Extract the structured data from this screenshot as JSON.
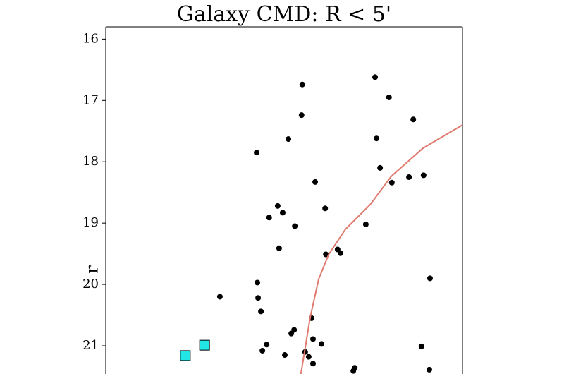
{
  "chart_data": {
    "type": "scatter",
    "title": "Galaxy CMD: R < 5'",
    "ylabel": "r",
    "xlim": [
      0,
      1
    ],
    "ylim": [
      21.46,
      15.8
    ],
    "yticks": [
      16,
      17,
      18,
      19,
      20,
      21
    ],
    "grid": false,
    "series": [
      {
        "marker": "circle",
        "color": "#000000",
        "x": [
          0.755,
          0.551,
          0.794,
          0.549,
          0.862,
          0.512,
          0.759,
          0.423,
          0.769,
          0.891,
          0.85,
          0.802,
          0.587,
          0.615,
          0.482,
          0.496,
          0.458,
          0.53,
          0.729,
          0.486,
          0.617,
          0.65,
          0.658,
          0.909,
          0.425,
          0.32,
          0.427,
          0.435,
          0.577,
          0.451,
          0.528,
          0.52,
          0.581,
          0.605,
          0.439,
          0.559,
          0.502,
          0.569,
          0.581,
          0.885,
          0.698,
          0.694,
          0.907
        ],
        "values": [
          16.62,
          16.74,
          16.95,
          17.24,
          17.31,
          17.63,
          17.62,
          17.85,
          18.1,
          18.22,
          18.25,
          18.34,
          18.33,
          18.76,
          18.72,
          18.83,
          18.91,
          19.05,
          19.02,
          19.41,
          19.51,
          19.43,
          19.49,
          19.9,
          19.97,
          20.2,
          20.22,
          20.44,
          20.55,
          20.98,
          20.74,
          20.8,
          20.89,
          20.97,
          21.08,
          21.1,
          21.15,
          21.18,
          21.29,
          21.01,
          21.36,
          21.41,
          21.39
        ]
      },
      {
        "marker": "square",
        "color": "#22e5e5",
        "x": [
          0.223,
          0.277
        ],
        "values": [
          21.16,
          20.99
        ]
      },
      {
        "marker": "line",
        "color": "#e07a6e",
        "x": [
          0.547,
          0.557,
          0.573,
          0.597,
          0.625,
          0.672,
          0.741,
          0.8,
          0.889,
          1.0
        ],
        "values": [
          21.46,
          21.11,
          20.54,
          19.91,
          19.51,
          19.1,
          18.7,
          18.24,
          17.78,
          17.4
        ]
      }
    ]
  }
}
